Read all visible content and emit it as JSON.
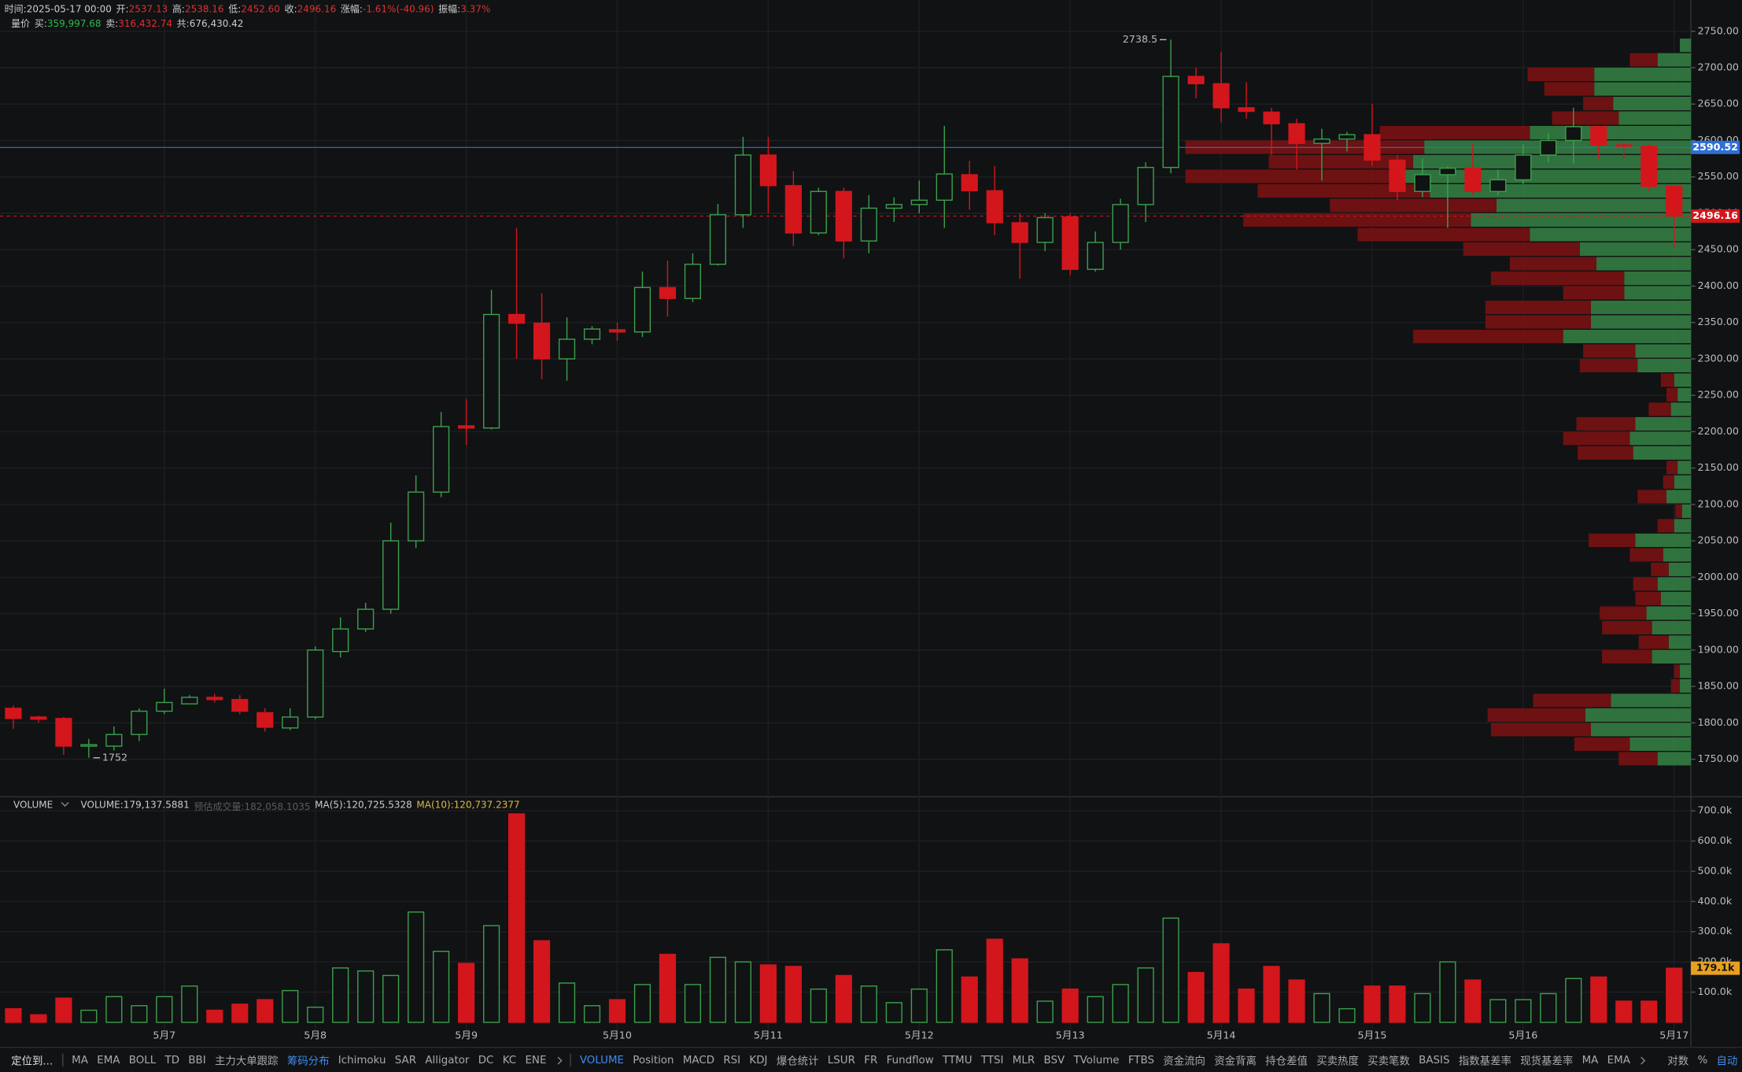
{
  "header": {
    "row1": [
      {
        "label": "时间:",
        "value": "2025-05-17 00:00"
      },
      {
        "label": "开:",
        "value": "2537.13"
      },
      {
        "label": "高:",
        "value": "2538.16"
      },
      {
        "label": "低:",
        "value": "2452.60"
      },
      {
        "label": "收:",
        "value": "2496.16"
      },
      {
        "label": "涨幅:",
        "value": "-1.61%(-40.96)"
      },
      {
        "label": "振幅:",
        "value": "3.37%"
      }
    ],
    "row2": {
      "title": "量价",
      "items": [
        {
          "label": "买:",
          "value": "359,997.68",
          "color": "#2db84d"
        },
        {
          "label": "卖:",
          "value": "316,432.74",
          "color": "#e0302f"
        },
        {
          "label": "共:",
          "value": "676,430.42",
          "color": "#cccccc"
        }
      ]
    }
  },
  "chart_data": [
    {
      "type": "candlestick",
      "categories": [
        null,
        null,
        null,
        null,
        null,
        null,
        "5月7",
        null,
        null,
        null,
        null,
        null,
        "5月8",
        null,
        null,
        null,
        null,
        null,
        "5月9",
        null,
        null,
        null,
        null,
        null,
        "5月10",
        null,
        null,
        null,
        null,
        null,
        "5月11",
        null,
        null,
        null,
        null,
        null,
        "5月12",
        null,
        null,
        null,
        null,
        null,
        "5月13",
        null,
        null,
        null,
        null,
        null,
        "5月14",
        null,
        null,
        null,
        null,
        null,
        "5月15",
        null,
        null,
        null,
        null,
        null,
        "5月16",
        null,
        null,
        null,
        null,
        null,
        "5月17"
      ],
      "open": [
        1820,
        1808,
        1806,
        1768,
        1768,
        1784,
        1816,
        1826,
        1835,
        1832,
        1814,
        1793,
        1808,
        1898,
        1929,
        1956,
        2050,
        2117,
        2208,
        2205,
        2361,
        2349,
        2300,
        2327,
        2340,
        2337,
        2398,
        2383,
        2430,
        2498,
        2580,
        2538,
        2473,
        2530,
        2462,
        2507,
        2512,
        2518,
        2553,
        2531,
        2487,
        2460,
        2495,
        2423,
        2460,
        2512,
        2563,
        2688,
        2678,
        2645,
        2639,
        2623,
        2596,
        2602,
        2608,
        2573,
        2530,
        2553,
        2562,
        2530,
        2546,
        2580,
        2600,
        2619,
        2594,
        2592,
        2537.13
      ],
      "high": [
        1824,
        1810,
        1808,
        1778,
        1795,
        1820,
        1847,
        1838,
        1840,
        1838,
        1820,
        1820,
        1905,
        1945,
        1965,
        2075,
        2140,
        2227,
        2245,
        2395,
        2480,
        2390,
        2357,
        2345,
        2350,
        2420,
        2435,
        2445,
        2513,
        2605,
        2605,
        2558,
        2535,
        2535,
        2525,
        2522,
        2545,
        2620,
        2572,
        2565,
        2500,
        2500,
        2500,
        2475,
        2520,
        2570,
        2738.5,
        2700,
        2722,
        2680,
        2645,
        2630,
        2616,
        2612,
        2650,
        2580,
        2575,
        2565,
        2595,
        2560,
        2595,
        2610,
        2645,
        2620,
        2598,
        2595,
        2538.16
      ],
      "low": [
        1792,
        1800,
        1756,
        1752,
        1762,
        1775,
        1812,
        1826,
        1828,
        1812,
        1788,
        1790,
        1805,
        1890,
        1925,
        1950,
        2040,
        2110,
        2182,
        2203,
        2300,
        2272,
        2270,
        2320,
        2325,
        2330,
        2358,
        2378,
        2428,
        2480,
        2500,
        2455,
        2470,
        2438,
        2445,
        2488,
        2500,
        2480,
        2505,
        2470,
        2410,
        2448,
        2415,
        2420,
        2450,
        2488,
        2555,
        2658,
        2625,
        2630,
        2580,
        2560,
        2545,
        2585,
        2565,
        2518,
        2522,
        2480,
        2525,
        2525,
        2540,
        2570,
        2568,
        2575,
        2575,
        2530,
        2452.6
      ],
      "close": [
        1806,
        1805,
        1768,
        1770,
        1784,
        1816,
        1828,
        1835,
        1832,
        1816,
        1794,
        1808,
        1900,
        1929,
        1956,
        2050,
        2117,
        2207,
        2205,
        2361,
        2349,
        2300,
        2327,
        2341,
        2337,
        2398,
        2383,
        2430,
        2498,
        2580,
        2538,
        2473,
        2530,
        2462,
        2507,
        2512,
        2518,
        2554,
        2531,
        2487,
        2460,
        2494,
        2423,
        2460,
        2512,
        2563,
        2688,
        2678,
        2645,
        2640,
        2623,
        2596,
        2602,
        2608,
        2573,
        2530,
        2553,
        2562,
        2530,
        2546,
        2580,
        2600,
        2619,
        2594,
        2592,
        2537,
        2496.16
      ],
      "up_color": "#3aa04c",
      "down_color": "#d3161c",
      "ylim": [
        1700,
        2793
      ],
      "yticks": [
        {
          "value": 1750,
          "label": "1750.00"
        },
        {
          "value": 1800,
          "label": "1800.00"
        },
        {
          "value": 1850,
          "label": "1850.00"
        },
        {
          "value": 1900,
          "label": "1900.00"
        },
        {
          "value": 1950,
          "label": "1950.00"
        },
        {
          "value": 2000,
          "label": "2000.00"
        },
        {
          "value": 2050,
          "label": "2050.00"
        },
        {
          "value": 2100,
          "label": "2100.00"
        },
        {
          "value": 2150,
          "label": "2150.00"
        },
        {
          "value": 2200,
          "label": "2200.00"
        },
        {
          "value": 2250,
          "label": "2250.00"
        },
        {
          "value": 2300,
          "label": "2300.00"
        },
        {
          "value": 2350,
          "label": "2350.00"
        },
        {
          "value": 2400,
          "label": "2400.00"
        },
        {
          "value": 2450,
          "label": "2450.00"
        },
        {
          "value": 2500,
          "label": "2500.00"
        },
        {
          "value": 2550,
          "label": "2550.00"
        },
        {
          "value": 2600,
          "label": "2600.00"
        },
        {
          "value": 2650,
          "label": "2650.00"
        },
        {
          "value": 2700,
          "label": "2700.00"
        },
        {
          "value": 2750,
          "label": "2750.00"
        }
      ],
      "grid": true,
      "price_lines": [
        {
          "value": 2590.52,
          "color": "#2f6fd6",
          "dashed": false
        },
        {
          "value": 2496.16,
          "color": "#d3161c",
          "dashed": true
        }
      ],
      "annotations": [
        {
          "index": 46,
          "value": 2738.5,
          "side": "left"
        },
        {
          "index": 3,
          "value": 1752,
          "side": "right"
        }
      ],
      "volume_profile": {
        "prices": [
          2730,
          2710,
          2690,
          2670,
          2650,
          2630,
          2610,
          2590,
          2570,
          2550,
          2530,
          2510,
          2490,
          2470,
          2450,
          2430,
          2410,
          2390,
          2370,
          2350,
          2330,
          2310,
          2290,
          2270,
          2250,
          2230,
          2210,
          2190,
          2170,
          2150,
          2130,
          2110,
          2090,
          2070,
          2050,
          2030,
          2010,
          1990,
          1970,
          1950,
          1930,
          1910,
          1890,
          1870,
          1850,
          1830,
          1810,
          1790,
          1770,
          1750
        ],
        "buy": [
          10,
          30,
          87,
          87,
          70,
          65,
          145,
          240,
          250,
          270,
          235,
          175,
          198,
          145,
          100,
          85,
          60,
          60,
          90,
          90,
          115,
          50,
          48,
          15,
          12,
          18,
          50,
          55,
          52,
          12,
          15,
          22,
          8,
          15,
          50,
          25,
          20,
          30,
          27,
          40,
          35,
          20,
          35,
          10,
          10,
          72,
          95,
          90,
          55,
          30
        ],
        "sell": [
          0,
          25,
          60,
          45,
          27,
          60,
          135,
          215,
          130,
          185,
          155,
          150,
          205,
          155,
          105,
          78,
          120,
          55,
          95,
          95,
          135,
          47,
          52,
          12,
          10,
          20,
          53,
          60,
          50,
          10,
          10,
          26,
          6,
          15,
          42,
          30,
          16,
          22,
          23,
          42,
          45,
          27,
          45,
          5,
          8,
          70,
          88,
          90,
          50,
          35
        ],
        "bin_width": 20,
        "buy_color": "rgba(52,125,66,0.9)",
        "sell_color": "rgba(120,18,18,0.9)"
      }
    },
    {
      "type": "bar",
      "title": "VOLUME",
      "legend": [
        {
          "text": "VOLUME:179,137.5881",
          "color": "#cccccc"
        },
        {
          "text": "预估成交量:182,058.1035",
          "color": "#5c5c5c"
        },
        {
          "text": "MA(5):120,725.5328",
          "color": "#cccccc"
        },
        {
          "text": "MA(10):120,737.2377",
          "color": "#d8b94a"
        }
      ],
      "values": [
        45000,
        25000,
        80000,
        40000,
        85000,
        55000,
        85000,
        120000,
        40000,
        60000,
        75000,
        105000,
        50000,
        180000,
        170000,
        155000,
        365000,
        235000,
        195000,
        320000,
        690000,
        270000,
        130000,
        55000,
        75000,
        125000,
        225000,
        125000,
        215000,
        200000,
        190000,
        185000,
        110000,
        155000,
        120000,
        65000,
        110000,
        240000,
        150000,
        275000,
        210000,
        70000,
        110000,
        85000,
        125000,
        180000,
        345000,
        165000,
        260000,
        110000,
        185000,
        140000,
        95000,
        45000,
        120000,
        120000,
        95000,
        200000,
        140000,
        75000,
        75000,
        95000,
        145000,
        150000,
        70000,
        70000,
        179137.5881
      ],
      "ylim": [
        0,
        743000
      ],
      "yticks": [
        {
          "value": 100000,
          "label": "100.0k"
        },
        {
          "value": 200000,
          "label": "200.0k"
        },
        {
          "value": 300000,
          "label": "300.0k"
        },
        {
          "value": 400000,
          "label": "400.0k"
        },
        {
          "value": 500000,
          "label": "500.0k"
        },
        {
          "value": 600000,
          "label": "600.0k"
        },
        {
          "value": 700000,
          "label": "700.0k"
        }
      ],
      "grid": true,
      "last_tag": {
        "value": 179137.5881,
        "label": "179.1k",
        "color": "#e8a020"
      }
    }
  ],
  "toolbar": {
    "locate": "定位到...",
    "items": [
      {
        "label": "MA"
      },
      {
        "label": "EMA"
      },
      {
        "label": "BOLL"
      },
      {
        "label": "TD"
      },
      {
        "label": "BBI"
      },
      {
        "label": "主力大单跟踪"
      },
      {
        "label": "筹码分布",
        "active": true
      },
      {
        "label": "Ichimoku"
      },
      {
        "label": "SAR"
      },
      {
        "label": "Alligator"
      },
      {
        "label": "DC"
      },
      {
        "label": "KC"
      },
      {
        "label": "ENE"
      }
    ],
    "items2": [
      {
        "label": "VOLUME",
        "active": true
      },
      {
        "label": "Position"
      },
      {
        "label": "MACD"
      },
      {
        "label": "RSI"
      },
      {
        "label": "KDJ"
      },
      {
        "label": "爆仓统计"
      },
      {
        "label": "LSUR"
      },
      {
        "label": "FR"
      },
      {
        "label": "Fundflow"
      },
      {
        "label": "TTMU"
      },
      {
        "label": "TTSI"
      },
      {
        "label": "MLR"
      },
      {
        "label": "BSV"
      },
      {
        "label": "TVolume"
      },
      {
        "label": "FTBS"
      },
      {
        "label": "资金流向"
      },
      {
        "label": "资金背离"
      },
      {
        "label": "持仓差值"
      },
      {
        "label": "买卖热度"
      },
      {
        "label": "买卖笔数"
      },
      {
        "label": "BASIS"
      },
      {
        "label": "指数基差率"
      },
      {
        "label": "现货基差率"
      },
      {
        "label": "MA"
      },
      {
        "label": "EMA"
      }
    ],
    "right": [
      {
        "label": "对数"
      },
      {
        "label": "%"
      },
      {
        "label": "自动",
        "active": true
      }
    ]
  }
}
